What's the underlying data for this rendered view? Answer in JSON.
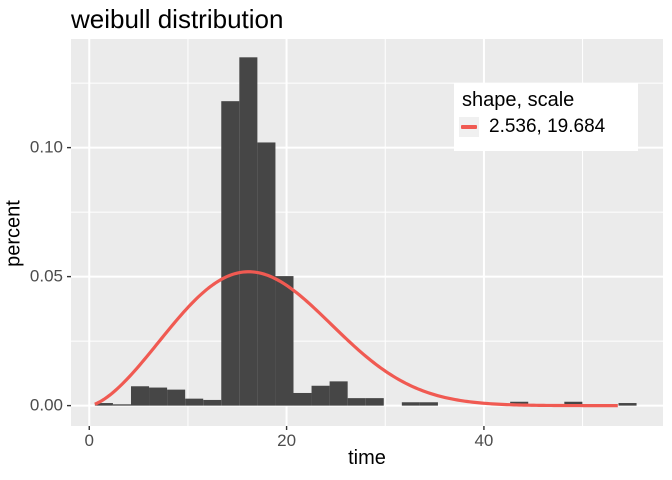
{
  "chart_data": {
    "type": "histogram",
    "title": "weibull distribution",
    "xlabel": "time",
    "ylabel": "percent",
    "x_domain": [
      -1.85,
      58.15
    ],
    "y_domain": [
      -0.0079,
      0.1421
    ],
    "x_ticks": [
      {
        "value": 0,
        "label": "0"
      },
      {
        "value": 20,
        "label": "20"
      },
      {
        "value": 40,
        "label": "40"
      }
    ],
    "x_minor_ticks": [
      10,
      30,
      50
    ],
    "y_ticks": [
      {
        "value": 0.0,
        "label": "0.00"
      },
      {
        "value": 0.05,
        "label": "0.05"
      },
      {
        "value": 0.1,
        "label": "0.10"
      }
    ],
    "y_minor_ticks": [
      0.025,
      0.075,
      0.125
    ],
    "histogram": {
      "binwidth": 1.83,
      "bins": [
        {
          "x0": 0.57,
          "x1": 2.4,
          "h": 0.001
        },
        {
          "x0": 2.4,
          "x1": 4.23,
          "h": 0.0005
        },
        {
          "x0": 4.23,
          "x1": 6.06,
          "h": 0.0075
        },
        {
          "x0": 6.06,
          "x1": 7.89,
          "h": 0.007
        },
        {
          "x0": 7.89,
          "x1": 9.72,
          "h": 0.0062
        },
        {
          "x0": 9.72,
          "x1": 11.55,
          "h": 0.0027
        },
        {
          "x0": 11.55,
          "x1": 13.38,
          "h": 0.0022
        },
        {
          "x0": 13.38,
          "x1": 15.21,
          "h": 0.118
        },
        {
          "x0": 15.21,
          "x1": 17.04,
          "h": 0.135
        },
        {
          "x0": 17.04,
          "x1": 18.87,
          "h": 0.102
        },
        {
          "x0": 18.87,
          "x1": 20.7,
          "h": 0.0502
        },
        {
          "x0": 20.7,
          "x1": 22.53,
          "h": 0.0049
        },
        {
          "x0": 22.53,
          "x1": 24.36,
          "h": 0.0077
        },
        {
          "x0": 24.36,
          "x1": 26.19,
          "h": 0.0094
        },
        {
          "x0": 26.19,
          "x1": 28.02,
          "h": 0.0029
        },
        {
          "x0": 28.02,
          "x1": 29.85,
          "h": 0.0029
        },
        {
          "x0": 31.68,
          "x1": 33.51,
          "h": 0.0013
        },
        {
          "x0": 33.51,
          "x1": 35.34,
          "h": 0.0013
        },
        {
          "x0": 42.66,
          "x1": 44.49,
          "h": 0.0015
        },
        {
          "x0": 48.15,
          "x1": 49.98,
          "h": 0.0015
        },
        {
          "x0": 53.64,
          "x1": 55.47,
          "h": 0.001
        }
      ]
    },
    "curve": {
      "distribution": "weibull_pdf",
      "shape": 2.536,
      "scale": 19.684,
      "x_min": 0.57,
      "x_max": 53.64,
      "stroke_width": 3.2
    },
    "legend": {
      "title": "shape, scale",
      "entries": [
        {
          "label": "2.536, 19.684"
        }
      ]
    },
    "colors": {
      "panel_bg": "#EBEBEB",
      "grid": "#FFFFFF",
      "bar": "#464646",
      "curve": "#F05A52",
      "tick_text": "#4D4D4D",
      "tick_mark": "#333333",
      "text": "#000000",
      "legend_bg": "#FFFFFF",
      "legend_key_bg": "#F0F0F0"
    },
    "legend_position": "inside-top-right",
    "grid": "on"
  }
}
